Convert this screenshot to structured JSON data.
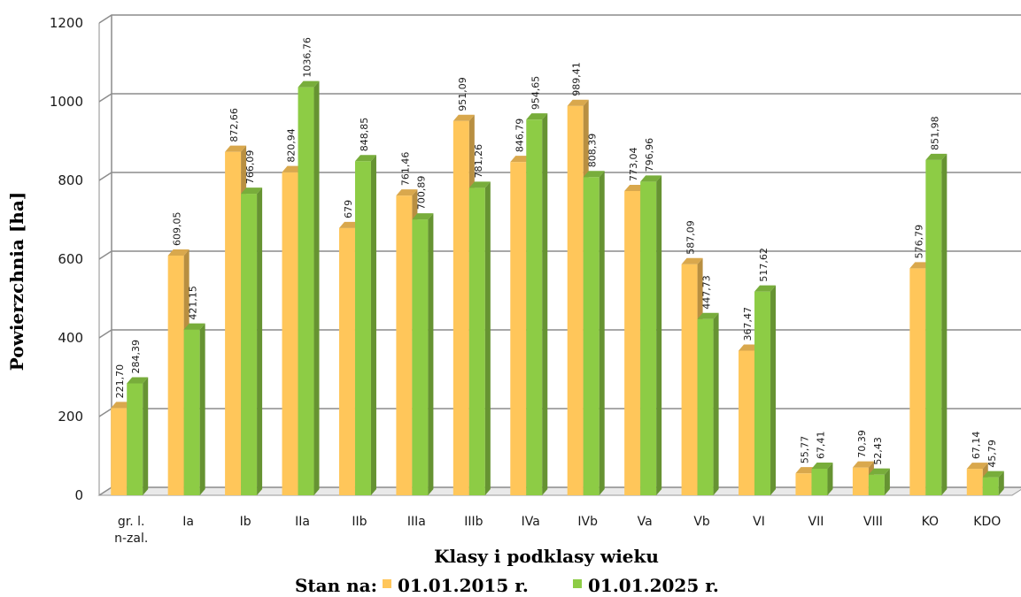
{
  "chart_data": {
    "type": "bar",
    "categories": [
      "gr. l.\nn-zal.",
      "Ia",
      "Ib",
      "IIa",
      "IIb",
      "IIIa",
      "IIIb",
      "IVa",
      "IVb",
      "Va",
      "Vb",
      "VI",
      "VII",
      "VIII",
      "KO",
      "KDO"
    ],
    "series": [
      {
        "name": "01.01.2015 r.",
        "color": "#FFC65A",
        "values": [
          221.7,
          609.05,
          872.66,
          820.94,
          679,
          761.46,
          951.09,
          846.79,
          989.41,
          773.04,
          587.09,
          367.47,
          55.77,
          70.39,
          576.79,
          67.14
        ],
        "labels": [
          "221,70",
          "609,05",
          "872,66",
          "820,94",
          "679",
          "761,46",
          "951,09",
          "846,79",
          "989,41",
          "773,04",
          "587,09",
          "367,47",
          "55,77",
          "70,39",
          "576,79",
          "67,14"
        ]
      },
      {
        "name": "01.01.2025 r.",
        "color": "#8DCC45",
        "values": [
          284.39,
          421.15,
          766.09,
          1036.76,
          848.85,
          700.89,
          781.26,
          954.65,
          808.39,
          796.96,
          447.73,
          517.62,
          67.41,
          52.43,
          851.98,
          45.79
        ],
        "labels": [
          "284,39",
          "421,15",
          "766,09",
          "1036,76",
          "848,85",
          "700,89",
          "781,26",
          "954,65",
          "808,39",
          "796,96",
          "447,73",
          "517,62",
          "67,41",
          "52,43",
          "851,98",
          "45,79"
        ]
      }
    ],
    "xlabel": "Klasy i podklasy wieku",
    "ylabel": "Powierzchnia [ha]",
    "ylim": [
      0,
      1200
    ],
    "yticks": [
      0,
      200,
      400,
      600,
      800,
      1000,
      1200
    ],
    "grid": true,
    "legend": {
      "position": "bottom",
      "prefix": "Stan na:"
    }
  }
}
